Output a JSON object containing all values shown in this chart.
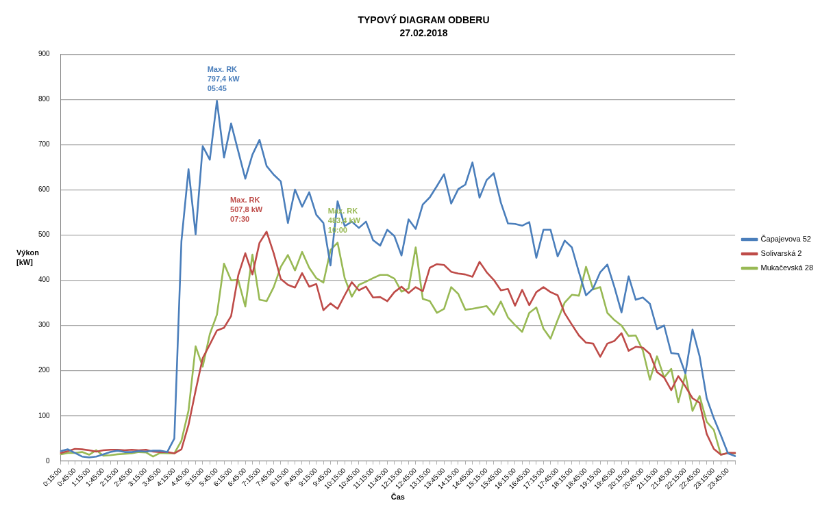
{
  "chart_data": {
    "type": "line",
    "title": "TYPOVÝ DIAGRAM ODBERU",
    "subtitle": "27.02.2018",
    "xlabel": "Čas",
    "ylabel": "Výkon [kW]",
    "categories": [
      "0:15:00",
      null,
      "0:45:00",
      null,
      "1:15:00",
      null,
      "1:45:00",
      null,
      "2:15:00",
      null,
      "2:45:00",
      null,
      "3:15:00",
      null,
      "3:45:00",
      null,
      "4:15:00",
      null,
      "4:45:00",
      null,
      "5:15:00",
      null,
      "5:45:00",
      null,
      "6:15:00",
      null,
      "6:45:00",
      null,
      "7:15:00",
      null,
      "7:45:00",
      null,
      "8:15:00",
      null,
      "8:45:00",
      null,
      "9:15:00",
      null,
      "9:45:00",
      null,
      "10:15:00",
      null,
      "10:45:00",
      null,
      "11:15:00",
      null,
      "11:45:00",
      null,
      "12:15:00",
      null,
      "12:45:00",
      null,
      "13:15:00",
      null,
      "13:45:00",
      null,
      "14:15:00",
      null,
      "14:45:00",
      null,
      "15:15:00",
      null,
      "15:45:00",
      null,
      "16:15:00",
      null,
      "16:45:00",
      null,
      "17:15:00",
      null,
      "17:45:00",
      null,
      "18:15:00",
      null,
      "18:45:00",
      null,
      "19:15:00",
      null,
      "19:45:00",
      null,
      "20:15:00",
      null,
      "20:45:00",
      null,
      "21:15:00",
      null,
      "21:45:00",
      null,
      "22:15:00",
      null,
      "22:45:00",
      null,
      "23:15:00",
      null,
      "23:45:00",
      null
    ],
    "series": [
      {
        "name": "Čapajevova 52",
        "color": "#4a7ebb",
        "values": [
          22,
          26,
          18,
          10,
          8,
          10,
          15,
          20,
          23,
          20,
          20,
          22,
          21,
          23,
          23,
          20,
          50,
          487,
          646,
          502,
          697,
          667,
          797.4,
          672,
          747,
          686,
          625,
          678,
          711,
          653,
          634,
          619,
          527,
          601,
          563,
          595,
          545,
          527,
          433,
          575,
          520,
          530,
          516,
          530,
          489,
          477,
          512,
          498,
          455,
          535,
          514,
          568,
          584,
          609,
          635,
          570,
          602,
          612,
          661,
          583,
          622,
          637,
          572,
          526,
          525,
          521,
          529,
          450,
          512,
          512,
          453,
          488,
          473,
          418,
          367,
          382,
          418,
          435,
          385,
          329,
          409,
          357,
          362,
          348,
          292,
          300,
          239,
          237,
          194,
          291,
          232,
          139,
          95,
          57,
          17,
          11
        ]
      },
      {
        "name": "Solivarská 2",
        "color": "#be4b48",
        "values": [
          18,
          22,
          27,
          26,
          24,
          21,
          24,
          25,
          25,
          24,
          25,
          24,
          25,
          21,
          20,
          20,
          17,
          26,
          80,
          156,
          228,
          258,
          289,
          295,
          321,
          411,
          460,
          413,
          483,
          507.8,
          460,
          403,
          390,
          384,
          416,
          386,
          392,
          334,
          349,
          337,
          367,
          396,
          378,
          386,
          362,
          363,
          354,
          374,
          386,
          372,
          385,
          376,
          428,
          436,
          434,
          419,
          415,
          413,
          408,
          441,
          418,
          401,
          378,
          381,
          344,
          379,
          345,
          374,
          385,
          374,
          367,
          327,
          302,
          278,
          262,
          260,
          231,
          260,
          266,
          283,
          244,
          253,
          251,
          237,
          197,
          185,
          157,
          188,
          165,
          139,
          129,
          60,
          27,
          14,
          18,
          18
        ]
      },
      {
        "name": "Mukačevská 28",
        "color": "#98b954",
        "values": [
          15,
          18,
          18,
          20,
          14,
          24,
          12,
          13,
          15,
          16,
          17,
          20,
          19,
          10,
          18,
          17,
          17,
          45,
          112,
          254,
          209,
          281,
          324,
          437,
          400,
          401,
          342,
          457,
          357,
          354,
          385,
          430,
          456,
          422,
          463,
          428,
          405,
          395,
          467,
          483.4,
          405,
          364,
          390,
          397,
          405,
          412,
          412,
          404,
          375,
          382,
          473,
          359,
          354,
          328,
          337,
          385,
          370,
          335,
          337,
          340,
          343,
          324,
          353,
          318,
          301,
          286,
          328,
          340,
          293,
          271,
          312,
          351,
          368,
          366,
          430,
          380,
          385,
          328,
          312,
          300,
          277,
          278,
          245,
          180,
          232,
          185,
          204,
          130,
          192,
          111,
          144,
          87,
          69,
          14,
          18,
          17
        ]
      }
    ],
    "ylim": [
      0,
      900
    ],
    "yticks": [
      0,
      100,
      200,
      300,
      400,
      500,
      600,
      700,
      800,
      900
    ],
    "grid": "y",
    "legend": "right",
    "marker": "none",
    "line_style": "solid",
    "annotations": [
      {
        "text": "Max. RK\n797,4 kW\n05:45",
        "x": "5:45:00",
        "y": 797.4
      },
      "Max. RK\n507,8 kW\n07:30",
      "Max. RK\n483,4 kW\n10:00"
    ]
  }
}
